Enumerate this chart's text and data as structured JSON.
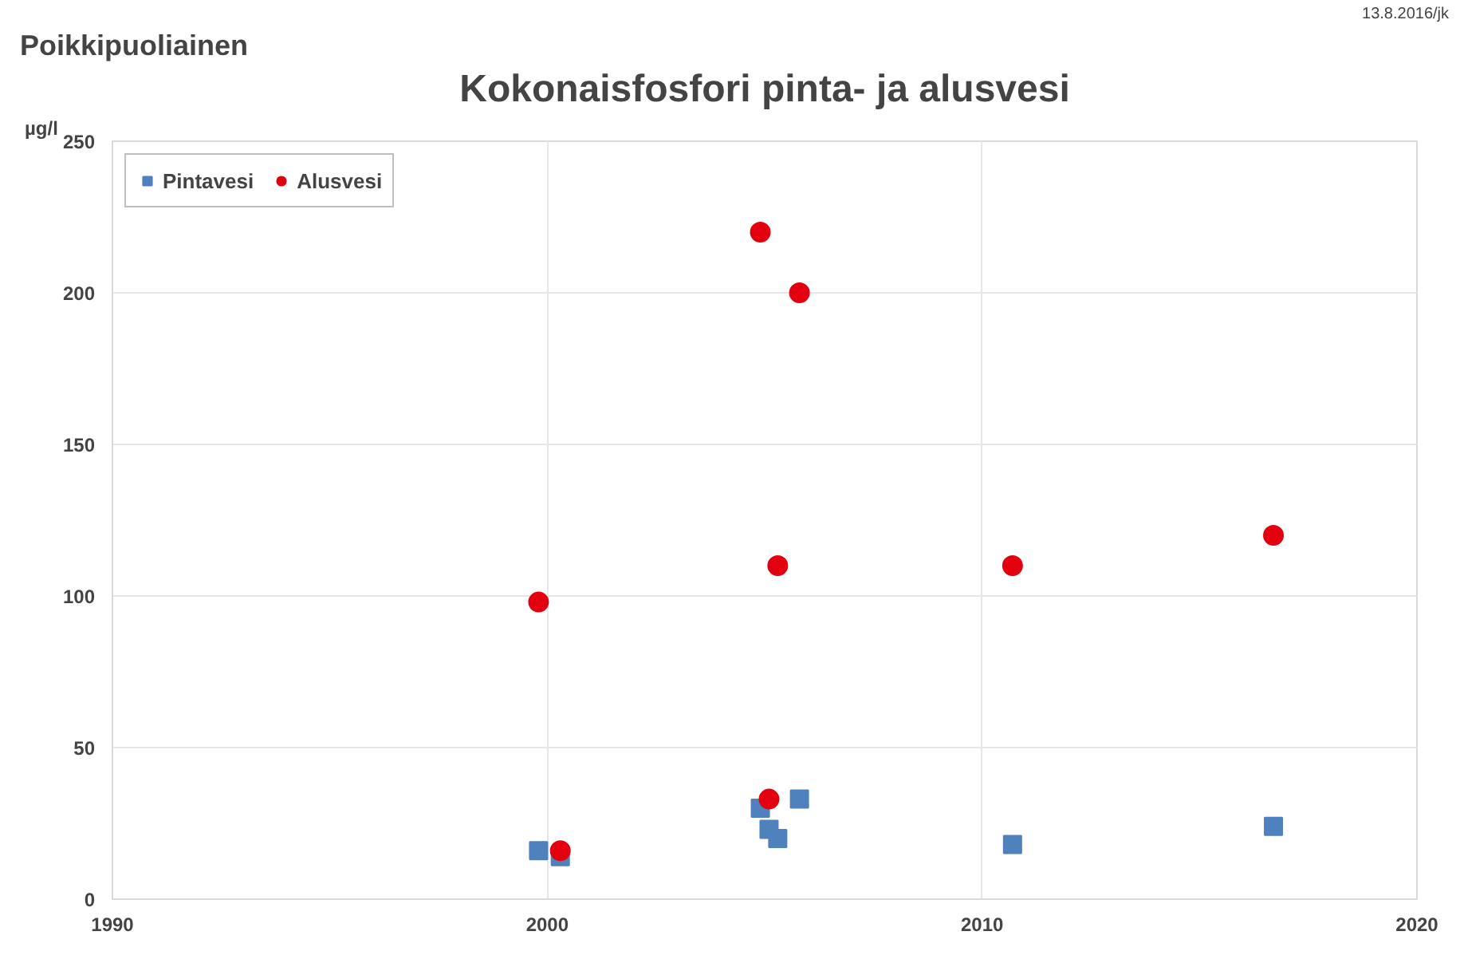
{
  "chart_data": {
    "type": "scatter",
    "title": "Kokonaisfosfori pinta- ja alusvesi",
    "subtitle": "Poikkipuoliainen",
    "ylabel": "µg/l",
    "annotations": [
      "13.8.2016/jk"
    ],
    "xlim": [
      1990,
      2020
    ],
    "xticks": [
      1990,
      2000,
      2010,
      2020
    ],
    "ylim": [
      0,
      250
    ],
    "yticks": [
      0,
      50,
      100,
      150,
      200,
      250
    ],
    "grid": true,
    "legend": "top left",
    "series": [
      {
        "name": "Pintavesi",
        "color": "#4f81bd",
        "marker": "square",
        "x": [
          1999.8,
          2000.3,
          2004.9,
          2005.1,
          2005.3,
          2005.8,
          2010.7,
          2016.7
        ],
        "values": [
          16,
          14,
          30,
          23,
          20,
          33,
          18,
          24
        ]
      },
      {
        "name": "Alusvesi",
        "color": "#e3000f",
        "marker": "circle",
        "x": [
          1999.8,
          2000.3,
          2004.9,
          2005.8,
          2005.3,
          2010.7,
          2016.7,
          2005.1
        ],
        "values": [
          98,
          16,
          220,
          200,
          110,
          110,
          120,
          33
        ]
      }
    ]
  }
}
